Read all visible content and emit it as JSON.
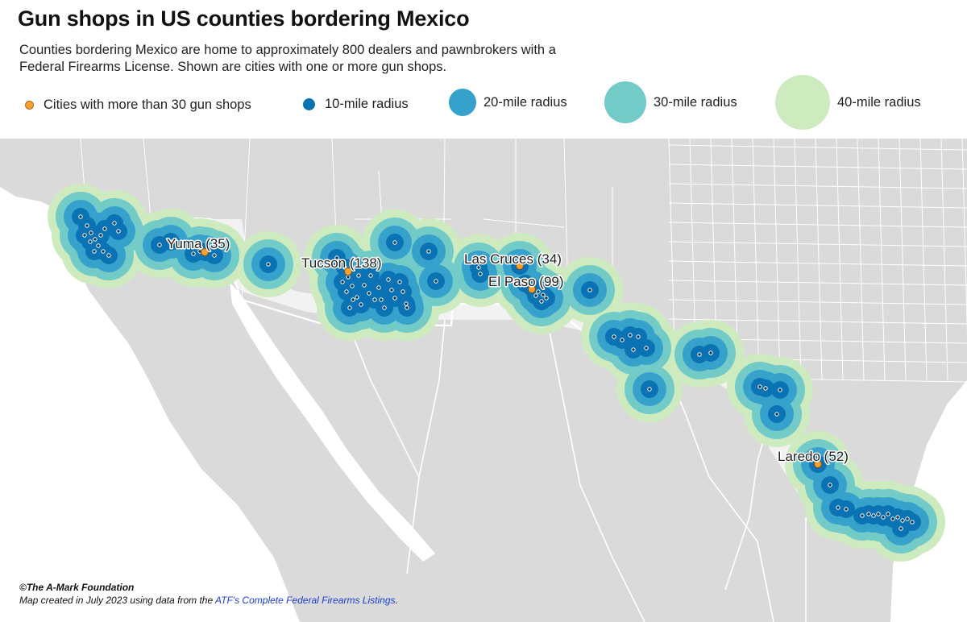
{
  "title": "Gun shops in US counties bordering Mexico",
  "subtitle": "Counties bordering Mexico are home to approximately 800 dealers and pawnbrokers with a Federal Firearms License. Shown are cities with one or more gun shops.",
  "legend": {
    "cities": "Cities with more than 30 gun shops",
    "r10": "10-mile radius",
    "r20": "20-mile radius",
    "r30": "30-mile radius",
    "r40": "40-mile radius"
  },
  "colors": {
    "r10": "#0b73b3",
    "r20": "#36a2cc",
    "r30": "#73cbc8",
    "r40": "#cdebbe",
    "city_marker": "#f5a030",
    "land_us": "#d9d9d9",
    "land_mx": "#dcdcdc",
    "border_counties": "#f2f2f2"
  },
  "cities": [
    {
      "name": "Yuma (35)"
    },
    {
      "name": "Tucson (138)"
    },
    {
      "name": "Las Cruces (34)"
    },
    {
      "name": "El Paso (99)"
    },
    {
      "name": "Laredo (52)"
    }
  ],
  "footer": {
    "credit": "©The A-Mark Foundation",
    "source_prefix": "Map created in July 2023 using data from the ",
    "source_link": "ATF's Complete Federal Firearms Listings",
    "source_suffix": "."
  }
}
